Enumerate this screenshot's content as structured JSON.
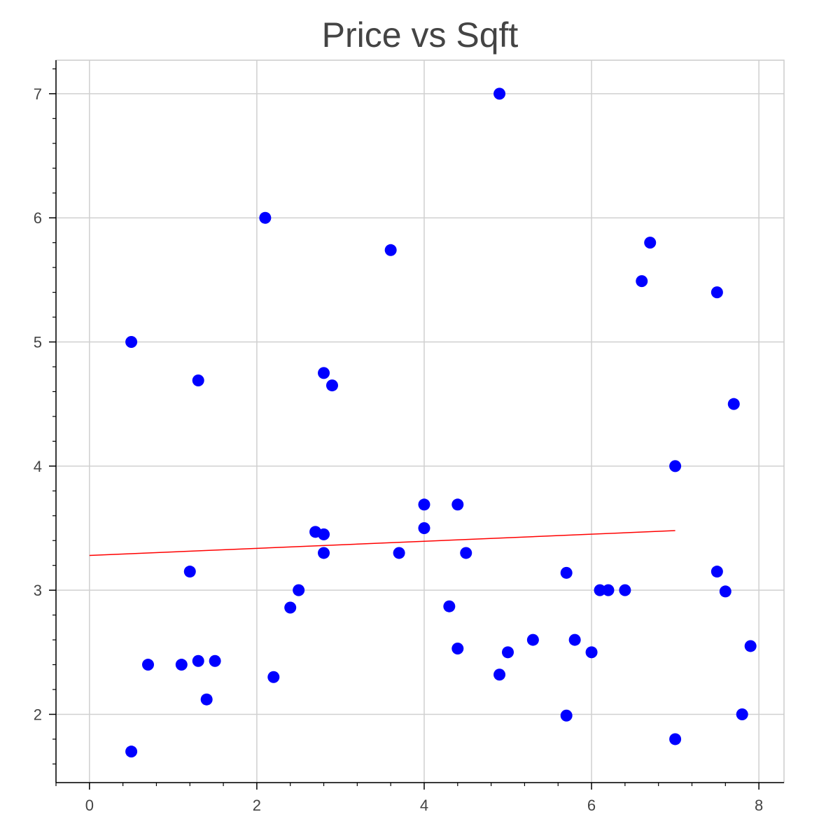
{
  "chart_data": {
    "type": "scatter",
    "title": "Price vs Sqft",
    "xlabel": "",
    "ylabel": "",
    "xlim": [
      -0.4,
      8.3
    ],
    "ylim": [
      1.45,
      7.27
    ],
    "x_ticks": [
      0,
      2,
      4,
      6,
      8
    ],
    "y_ticks": [
      2,
      3,
      4,
      5,
      6,
      7
    ],
    "grid": true,
    "legend": "none",
    "series": [
      {
        "marker_color": "#0000ff",
        "points": [
          [
            0.5,
            5.0
          ],
          [
            0.5,
            1.7
          ],
          [
            0.7,
            2.4
          ],
          [
            1.1,
            2.4
          ],
          [
            1.2,
            3.15
          ],
          [
            1.3,
            4.69
          ],
          [
            1.3,
            2.43
          ],
          [
            1.4,
            2.12
          ],
          [
            1.5,
            2.43
          ],
          [
            2.1,
            6.0
          ],
          [
            2.2,
            2.3
          ],
          [
            2.4,
            2.86
          ],
          [
            2.5,
            3.0
          ],
          [
            2.7,
            3.47
          ],
          [
            2.8,
            3.45
          ],
          [
            2.8,
            3.3
          ],
          [
            2.8,
            4.75
          ],
          [
            2.9,
            4.65
          ],
          [
            3.6,
            5.74
          ],
          [
            3.7,
            3.3
          ],
          [
            4.0,
            3.69
          ],
          [
            4.0,
            3.5
          ],
          [
            4.3,
            2.87
          ],
          [
            4.4,
            3.69
          ],
          [
            4.4,
            2.53
          ],
          [
            4.5,
            3.3
          ],
          [
            4.9,
            7.0
          ],
          [
            4.9,
            2.32
          ],
          [
            5.0,
            2.5
          ],
          [
            5.3,
            2.6
          ],
          [
            5.7,
            3.14
          ],
          [
            5.7,
            1.99
          ],
          [
            5.8,
            2.6
          ],
          [
            6.0,
            2.5
          ],
          [
            6.1,
            3.0
          ],
          [
            6.2,
            3.0
          ],
          [
            6.4,
            3.0
          ],
          [
            6.6,
            5.49
          ],
          [
            6.7,
            5.8
          ],
          [
            7.0,
            4.0
          ],
          [
            7.0,
            1.8
          ],
          [
            7.5,
            5.4
          ],
          [
            7.5,
            3.15
          ],
          [
            7.6,
            2.99
          ],
          [
            7.7,
            4.5
          ],
          [
            7.8,
            2.0
          ],
          [
            7.9,
            2.55
          ]
        ]
      }
    ],
    "trend_line": {
      "color": "#ff0000",
      "points": [
        [
          0,
          3.28
        ],
        [
          7.0,
          3.48
        ]
      ]
    }
  }
}
